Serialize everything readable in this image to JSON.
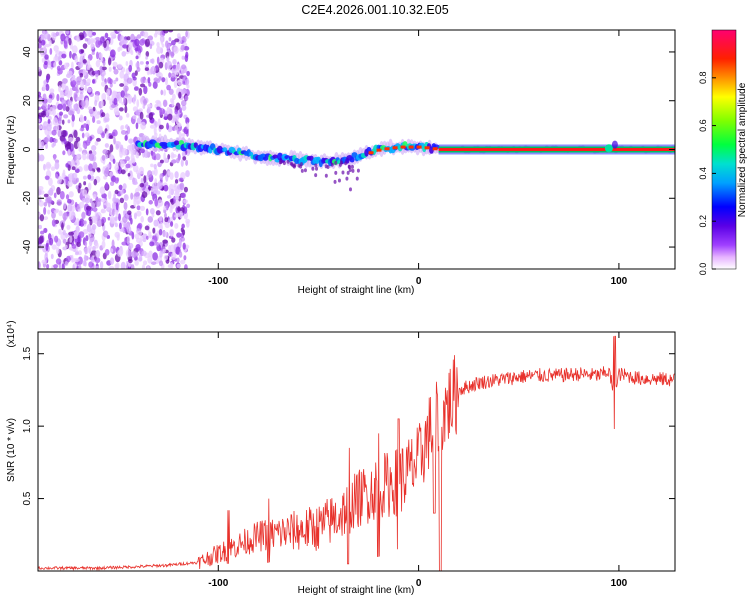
{
  "title": "C2E4.2026.001.10.32.E05",
  "chart_data": [
    {
      "type": "heatmap",
      "xlabel": "Height of straight line (km)",
      "ylabel": "Frequency (Hz)",
      "xlim": [
        -190,
        128
      ],
      "ylim": [
        -49,
        49
      ],
      "xticks": [
        -100,
        0,
        100
      ],
      "yticks": [
        -40,
        -20,
        0,
        20,
        40
      ],
      "colorbar": {
        "label": "Normalized spectral amplitude",
        "range": [
          0,
          1
        ],
        "ticks": [
          0.0,
          0.2,
          0.4,
          0.6,
          0.8
        ]
      },
      "ridge_frequency_hz": [
        {
          "x": -185,
          "f": 4
        },
        {
          "x": -140,
          "f": 3
        },
        {
          "x": -120,
          "f": 2
        },
        {
          "x": -100,
          "f": 0
        },
        {
          "x": -80,
          "f": -3
        },
        {
          "x": -60,
          "f": -4
        },
        {
          "x": -45,
          "f": -5
        },
        {
          "x": -35,
          "f": -4
        },
        {
          "x": -20,
          "f": 0
        },
        {
          "x": -10,
          "f": 1
        },
        {
          "x": 0,
          "f": 1
        },
        {
          "x": 10,
          "f": 0
        },
        {
          "x": 128,
          "f": 0
        }
      ],
      "series": [
        {
          "name": "noise scatter",
          "x_range": [
            -190,
            -115
          ],
          "f_range": [
            -49,
            49
          ]
        },
        {
          "name": "carrier ridge",
          "x_range": [
            -140,
            128
          ]
        }
      ]
    },
    {
      "type": "line",
      "xlabel": "Height of straight line (km)",
      "ylabel": "SNR (10 * v/v)",
      "y_multiplier": "(x10⁴)",
      "xlim": [
        -190,
        128
      ],
      "ylim": [
        0,
        1.65
      ],
      "xticks": [
        -100,
        0,
        100
      ],
      "yticks": [
        0.5,
        1.0,
        1.5
      ],
      "color": "#e8312b",
      "series": [
        {
          "name": "SNR",
          "x": [
            -190,
            -160,
            -140,
            -125,
            -110,
            -100,
            -90,
            -80,
            -70,
            -60,
            -50,
            -40,
            -30,
            -20,
            -10,
            0,
            5,
            10,
            15,
            20,
            30,
            40,
            50,
            60,
            70,
            80,
            90,
            95,
            98,
            100,
            110,
            128
          ],
          "y": [
            0.02,
            0.02,
            0.03,
            0.04,
            0.06,
            0.12,
            0.18,
            0.24,
            0.26,
            0.28,
            0.3,
            0.38,
            0.5,
            0.58,
            0.62,
            0.75,
            0.95,
            1.05,
            1.15,
            1.25,
            1.3,
            1.32,
            1.34,
            1.35,
            1.35,
            1.36,
            1.35,
            1.38,
            1.2,
            1.36,
            1.33,
            1.32
          ]
        }
      ],
      "spikes": [
        {
          "x": -95,
          "y_min": 0.05,
          "y_max": 0.42
        },
        {
          "x": -75,
          "y_min": 0.06,
          "y_max": 0.5
        },
        {
          "x": -35,
          "y_min": 0.05,
          "y_max": 0.85
        },
        {
          "x": -20,
          "y_min": 0.1,
          "y_max": 0.95
        },
        {
          "x": -10,
          "y_min": 0.15,
          "y_max": 1.05
        },
        {
          "x": 8,
          "y_min": 0.4,
          "y_max": 1.45
        },
        {
          "x": 11,
          "y_min": 0.0,
          "y_max": 1.57
        },
        {
          "x": 98,
          "y_min": 0.98,
          "y_max": 1.62
        }
      ]
    }
  ]
}
